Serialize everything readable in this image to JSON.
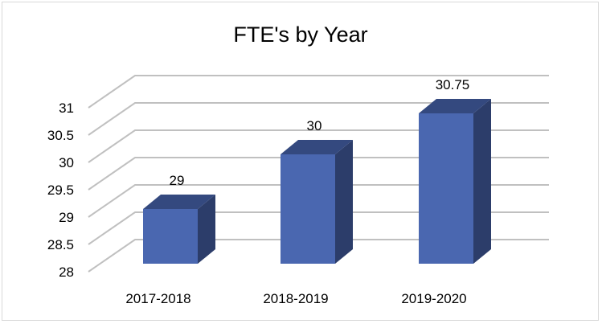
{
  "chart_data": {
    "type": "bar",
    "style": "3d-column",
    "title": "FTE's by Year",
    "xlabel": "",
    "ylabel": "",
    "categories": [
      "2017-2018",
      "2018-2019",
      "2019-2020"
    ],
    "values": [
      29,
      30,
      30.75
    ],
    "data_labels": [
      "29",
      "30",
      "30.75"
    ],
    "ylim": [
      28,
      31
    ],
    "yticks": [
      28,
      28.5,
      29,
      29.5,
      30,
      30.5,
      31
    ],
    "ytick_labels": [
      "28",
      "28.5",
      "29",
      "29.5",
      "30",
      "30.5",
      "31"
    ],
    "grid": true,
    "legend": "none",
    "colors": {
      "front": "#4a67b0",
      "side": "#2c3d6a",
      "top": "#34497f",
      "grid": "#c0c0c0"
    }
  }
}
